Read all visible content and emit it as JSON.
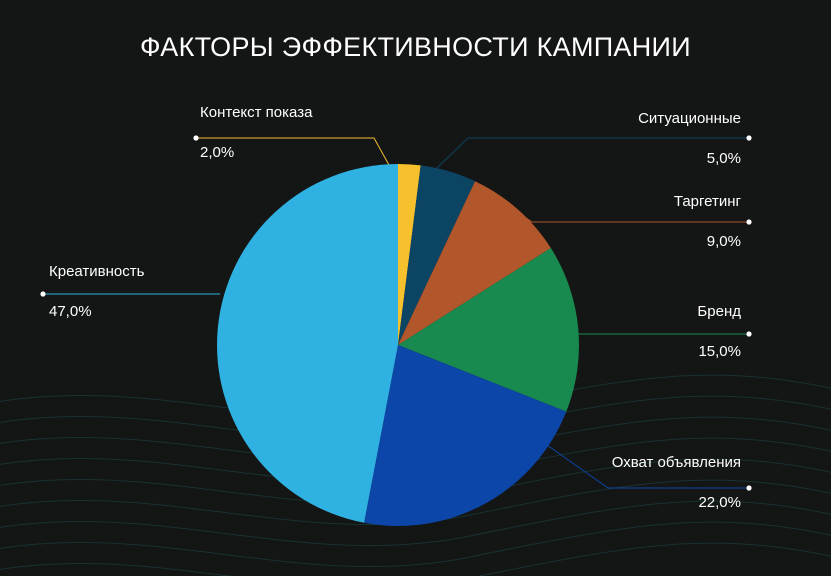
{
  "chart_data": {
    "type": "pie",
    "title": "ФАКТОРЫ ЭФФЕКТИВНОСТИ КАМПАНИИ",
    "slices": [
      {
        "label": "Контекст показа",
        "value": 2.0,
        "value_label": "2,0%",
        "color": "#f6c12d"
      },
      {
        "label": "Ситуационные",
        "value": 5.0,
        "value_label": "5,0%",
        "color": "#0b4563"
      },
      {
        "label": "Таргетинг",
        "value": 9.0,
        "value_label": "9,0%",
        "color": "#b2562b"
      },
      {
        "label": "Бренд",
        "value": 15.0,
        "value_label": "15,0%",
        "color": "#198a4f"
      },
      {
        "label": "Охват объявления",
        "value": 22.0,
        "value_label": "22,0%",
        "color": "#0b46a8"
      },
      {
        "label": "Креативность",
        "value": 47.0,
        "value_label": "47,0%",
        "color": "#2fb2e2"
      }
    ]
  },
  "colors": {
    "background": "#141515",
    "text": "#ffffff",
    "wave": "#1b4a4a"
  }
}
